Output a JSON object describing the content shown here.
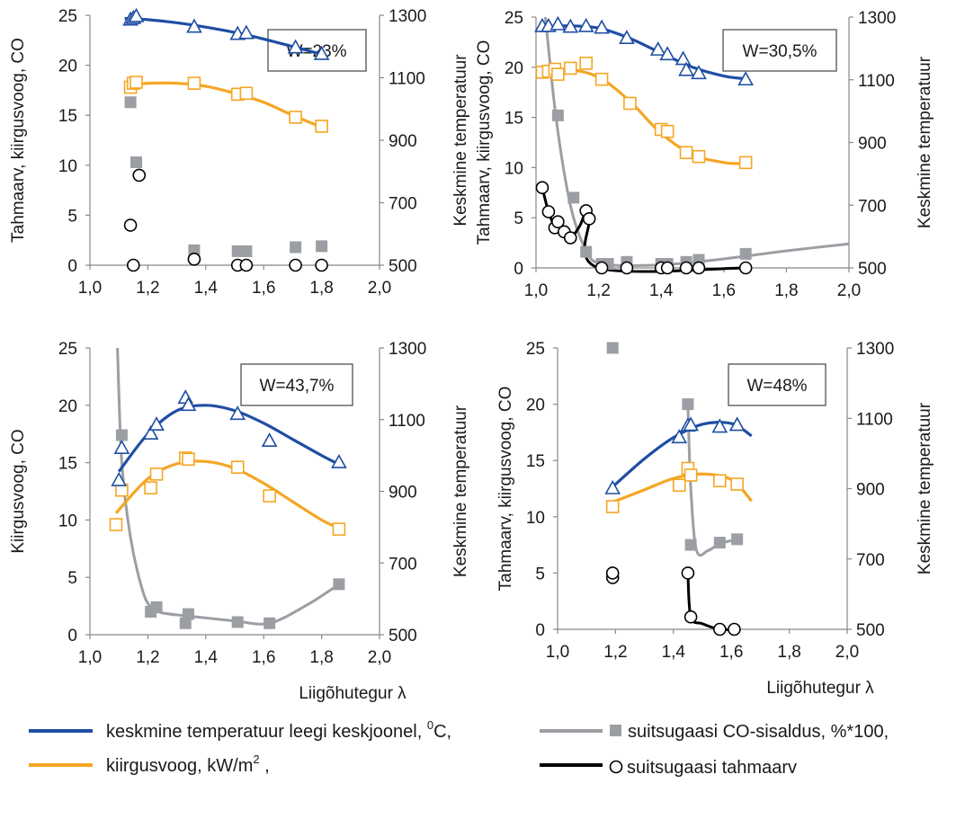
{
  "colors": {
    "temperature": "#1f4ea3",
    "radiation": "#f5a623",
    "co": "#9b9ea3",
    "soot": "#000000",
    "axis": "#888888",
    "text": "#1a1a1a"
  },
  "legend": {
    "temperature_text": "keskmine temperatuur leegi keskjoonel, ",
    "temperature_unit_base": "C,",
    "temperature_unit_sup": "0",
    "radiation_text": "kiirgusvoog, kW/m",
    "radiation_sup": "2",
    "radiation_tail": " ,",
    "co_text": "suitsugaasi CO-sisaldus, %*100,",
    "soot_text": "suitsugaasi tahmaarv"
  },
  "chart_data": [
    {
      "type": "line",
      "annotation": "W=23%",
      "ylabel": "Tahmaarv, kiirgusvoog, CO",
      "y2label": "Keskmine temperatuur",
      "xlabel": "",
      "xlim": [
        1.0,
        2.0
      ],
      "xticks": [
        "1,0",
        "1,2",
        "1,4",
        "1,6",
        "1,8",
        "2,0"
      ],
      "ylim": [
        0,
        25
      ],
      "yticks": [
        "0",
        "5",
        "10",
        "15",
        "20",
        "25"
      ],
      "y2lim": [
        500,
        1300
      ],
      "y2ticks": [
        "500",
        "700",
        "900",
        "1100",
        "1300"
      ],
      "series": [
        {
          "name": "keskmine temperatuur leegi keskjoonel, 0C",
          "key": "temperature",
          "axis": "y2",
          "marker": "triangle",
          "x": [
            1.14,
            1.15,
            1.16,
            1.36,
            1.51,
            1.54,
            1.71,
            1.8
          ],
          "y": [
            1285,
            1290,
            1296,
            1262,
            1239,
            1242,
            1196,
            1175
          ],
          "fit_x": [
            1.12,
            1.2,
            1.3,
            1.4,
            1.5,
            1.6,
            1.7,
            1.8
          ],
          "fit_y": [
            1290,
            1286,
            1276,
            1262,
            1245,
            1224,
            1200,
            1175
          ]
        },
        {
          "name": "kiirgusvoog, kW/m2",
          "key": "radiation",
          "axis": "y",
          "marker": "square",
          "x": [
            1.14,
            1.15,
            1.16,
            1.36,
            1.51,
            1.54,
            1.71,
            1.8
          ],
          "y": [
            17.8,
            18.2,
            18.3,
            18.2,
            17.1,
            17.2,
            14.8,
            13.9
          ],
          "fit_x": [
            1.14,
            1.2,
            1.3,
            1.4,
            1.5,
            1.6,
            1.7,
            1.8
          ],
          "fit_y": [
            18.0,
            18.2,
            18.2,
            17.9,
            17.2,
            16.3,
            15.0,
            13.8
          ]
        },
        {
          "name": "suitsugaasi CO-sisaldus, %*100",
          "key": "co",
          "axis": "y",
          "marker": "filled-square",
          "x": [
            1.14,
            1.16,
            1.36,
            1.51,
            1.54,
            1.71,
            1.8
          ],
          "y": [
            16.3,
            10.3,
            1.5,
            1.4,
            1.4,
            1.8,
            1.9
          ]
        },
        {
          "name": "suitsugaasi tahmaarv",
          "key": "soot",
          "axis": "y",
          "marker": "circle",
          "x": [
            1.14,
            1.15,
            1.17,
            1.36,
            1.51,
            1.54,
            1.71,
            1.8
          ],
          "y": [
            4.0,
            0.0,
            9.0,
            0.6,
            0.0,
            0.0,
            0.0,
            0.0
          ]
        }
      ]
    },
    {
      "type": "line",
      "annotation": "W=30,5%",
      "ylabel": "Tahmaarv, kiirgusvoog, CO",
      "y2label": "Keskmine temperatuur",
      "xlabel": "",
      "xlim": [
        1.0,
        2.0
      ],
      "xticks": [
        "1,0",
        "1,2",
        "1,4",
        "1,6",
        "1,8",
        "2,0"
      ],
      "ylim": [
        0,
        25
      ],
      "yticks": [
        "0",
        "5",
        "10",
        "15",
        "20",
        "25"
      ],
      "y2lim": [
        500,
        1300
      ],
      "y2ticks": [
        "500",
        "700",
        "900",
        "1100",
        "1300"
      ],
      "series": [
        {
          "name": "keskmine temperatuur leegi keskjoonel, 0C",
          "key": "temperature",
          "axis": "y2",
          "marker": "triangle",
          "x": [
            1.02,
            1.04,
            1.07,
            1.11,
            1.16,
            1.21,
            1.29,
            1.39,
            1.42,
            1.47,
            1.48,
            1.52,
            1.67
          ],
          "y": [
            1270,
            1270,
            1276,
            1268,
            1270,
            1265,
            1232,
            1195,
            1180,
            1165,
            1130,
            1120,
            1100
          ],
          "fit_x": [
            1.02,
            1.1,
            1.2,
            1.3,
            1.4,
            1.5,
            1.6,
            1.67
          ],
          "fit_y": [
            1268,
            1272,
            1265,
            1232,
            1185,
            1140,
            1112,
            1103
          ]
        },
        {
          "name": "kiirgusvoog, kW/m2",
          "key": "radiation",
          "axis": "y",
          "marker": "square",
          "x": [
            1.02,
            1.04,
            1.06,
            1.07,
            1.11,
            1.16,
            1.21,
            1.3,
            1.4,
            1.42,
            1.48,
            1.52,
            1.67
          ],
          "y": [
            19.5,
            19.6,
            19.8,
            19.3,
            19.9,
            20.4,
            18.8,
            16.4,
            13.8,
            13.6,
            11.5,
            11.1,
            10.5
          ],
          "fit_x": [
            1.02,
            1.1,
            1.2,
            1.3,
            1.4,
            1.5,
            1.6,
            1.67
          ],
          "fit_y": [
            19.6,
            19.8,
            19.0,
            16.6,
            13.4,
            11.3,
            10.5,
            10.4
          ]
        },
        {
          "name": "suitsugaasi CO-sisaldus, %*100",
          "key": "co",
          "axis": "y",
          "marker": "filled-square",
          "x": [
            1.07,
            1.12,
            1.16,
            1.21,
            1.23,
            1.29,
            1.4,
            1.42,
            1.48,
            1.52,
            1.67
          ],
          "y": [
            15.2,
            7.0,
            1.6,
            0.4,
            0.4,
            0.6,
            0.4,
            0.4,
            0.6,
            0.8,
            1.4
          ],
          "fit_x": [
            1.03,
            1.06,
            1.09,
            1.12,
            1.16,
            1.21,
            1.4,
            1.6,
            1.8,
            2.0
          ],
          "fit_y": [
            25.0,
            16.0,
            9.5,
            5.0,
            1.8,
            0.4,
            0.3,
            0.9,
            1.7,
            2.4
          ]
        },
        {
          "name": "suitsugaasi tahmaarv",
          "key": "soot",
          "axis": "y",
          "marker": "circle",
          "x": [
            1.02,
            1.04,
            1.06,
            1.07,
            1.09,
            1.11,
            1.16,
            1.17,
            1.21,
            1.29,
            1.4,
            1.42,
            1.48,
            1.52,
            1.67
          ],
          "y": [
            8.0,
            5.6,
            4.0,
            4.6,
            3.6,
            3.0,
            5.7,
            4.9,
            0.0,
            0.0,
            0.0,
            0.0,
            0.0,
            0.0,
            0.0
          ],
          "fit_x": [
            1.02,
            1.04,
            1.06,
            1.07,
            1.09,
            1.11,
            1.14,
            1.16,
            1.17,
            1.2,
            1.67
          ],
          "fit_y": [
            8.0,
            5.6,
            4.2,
            4.6,
            3.6,
            3.0,
            4.2,
            5.7,
            4.9,
            0.0,
            0.0
          ]
        }
      ]
    },
    {
      "type": "line",
      "annotation": "W=43,7%",
      "ylabel": "Kiirgusvoog, CO",
      "y2label": "Keskmine temperatuur",
      "xlabel": "Liigõhutegur λ",
      "xlim": [
        1.0,
        2.0
      ],
      "xticks": [
        "1,0",
        "1,2",
        "1,4",
        "1,6",
        "1,8",
        "2,0"
      ],
      "ylim": [
        0,
        25
      ],
      "yticks": [
        "0",
        "5",
        "10",
        "15",
        "20",
        "25"
      ],
      "y2lim": [
        500,
        1300
      ],
      "y2ticks": [
        "500",
        "700",
        "900",
        "1100",
        "1300"
      ],
      "series": [
        {
          "name": "keskmine temperatuur leegi keskjoonel, 0C",
          "key": "temperature",
          "axis": "y2",
          "marker": "triangle",
          "x": [
            1.1,
            1.11,
            1.21,
            1.23,
            1.33,
            1.34,
            1.51,
            1.62,
            1.86
          ],
          "y": [
            930,
            1020,
            1060,
            1085,
            1160,
            1140,
            1115,
            1040,
            980
          ],
          "fit_x": [
            1.1,
            1.2,
            1.3,
            1.4,
            1.5,
            1.6,
            1.7,
            1.8,
            1.86
          ],
          "fit_y": [
            955,
            1060,
            1125,
            1140,
            1125,
            1090,
            1045,
            1000,
            975
          ]
        },
        {
          "name": "kiirgusvoog, kW/m2",
          "key": "radiation",
          "axis": "y",
          "marker": "square",
          "x": [
            1.09,
            1.11,
            1.21,
            1.23,
            1.33,
            1.34,
            1.51,
            1.62,
            1.86
          ],
          "y": [
            9.6,
            12.6,
            12.8,
            14.0,
            15.4,
            15.3,
            14.6,
            12.1,
            9.2
          ],
          "fit_x": [
            1.09,
            1.2,
            1.3,
            1.4,
            1.5,
            1.6,
            1.7,
            1.8,
            1.86
          ],
          "fit_y": [
            10.6,
            13.6,
            14.9,
            15.1,
            14.5,
            13.2,
            11.6,
            10.0,
            9.3
          ]
        },
        {
          "name": "suitsugaasi CO-sisaldus, %*100",
          "key": "co",
          "axis": "y",
          "marker": "filled-square",
          "x": [
            1.11,
            1.21,
            1.23,
            1.33,
            1.34,
            1.51,
            1.62,
            1.86
          ],
          "y": [
            17.4,
            2.0,
            2.4,
            1.0,
            1.8,
            1.1,
            1.0,
            4.4
          ],
          "fit_x": [
            1.095,
            1.11,
            1.14,
            1.18,
            1.21,
            1.25,
            1.35,
            1.5,
            1.62,
            1.75,
            1.86
          ],
          "fit_y": [
            25.0,
            15.0,
            8.5,
            4.0,
            2.4,
            1.9,
            1.6,
            1.2,
            1.0,
            2.6,
            4.4
          ]
        }
      ]
    },
    {
      "type": "line",
      "annotation": "W=48%",
      "ylabel": "Tahmaarv, kiirgusvoog, CO",
      "y2label": "Keskmine temperatuur",
      "xlabel": "Liigõhutegur λ",
      "xlim": [
        1.0,
        2.0
      ],
      "xticks": [
        "1,0",
        "1,2",
        "1,4",
        "1,6",
        "1,8",
        "2,0"
      ],
      "ylim": [
        0,
        25
      ],
      "yticks": [
        "0",
        "5",
        "10",
        "15",
        "20",
        "25"
      ],
      "y2lim": [
        500,
        1300
      ],
      "y2ticks": [
        "500",
        "700",
        "900",
        "1100",
        "1300"
      ],
      "series": [
        {
          "name": "keskmine temperatuur leegi keskjoonel, 0C",
          "key": "temperature",
          "axis": "y2",
          "marker": "triangle",
          "x": [
            1.19,
            1.42,
            1.45,
            1.46,
            1.56,
            1.62
          ],
          "y": [
            900,
            1045,
            1078,
            1080,
            1075,
            1080
          ],
          "fit_x": [
            1.19,
            1.3,
            1.4,
            1.5,
            1.6,
            1.67
          ],
          "fit_y": [
            905,
            985,
            1045,
            1083,
            1085,
            1050
          ]
        },
        {
          "name": "kiirgusvoog, kW/m2",
          "key": "radiation",
          "axis": "y",
          "marker": "square",
          "x": [
            1.19,
            1.42,
            1.45,
            1.46,
            1.56,
            1.62
          ],
          "y": [
            10.9,
            12.8,
            14.3,
            13.7,
            13.2,
            12.9
          ],
          "fit_x": [
            1.19,
            1.3,
            1.4,
            1.5,
            1.6,
            1.67
          ],
          "fit_y": [
            11.3,
            12.4,
            13.4,
            13.8,
            13.3,
            11.4
          ]
        },
        {
          "name": "suitsugaasi CO-sisaldus, %*100",
          "key": "co",
          "axis": "y",
          "marker": "filled-square",
          "x": [
            1.19,
            1.45,
            1.46,
            1.56,
            1.62
          ],
          "y": [
            25.0,
            20.0,
            7.5,
            7.7,
            8.0
          ],
          "fit_x": [
            1.45,
            1.46,
            1.48,
            1.52,
            1.56,
            1.62
          ],
          "fit_y": [
            20.0,
            12.5,
            7.0,
            7.0,
            7.6,
            8.0
          ]
        },
        {
          "name": "suitsugaasi tahmaarv",
          "key": "soot",
          "axis": "y",
          "marker": "circle",
          "x": [
            1.19,
            1.19,
            1.45,
            1.46,
            1.56,
            1.61
          ],
          "y": [
            4.6,
            5.0,
            5.0,
            1.1,
            0.0,
            0.0
          ],
          "fit_x": [
            1.45,
            1.46,
            1.5,
            1.56,
            1.61
          ],
          "fit_y": [
            5.0,
            1.1,
            0.5,
            0.0,
            0.0
          ]
        }
      ]
    }
  ]
}
